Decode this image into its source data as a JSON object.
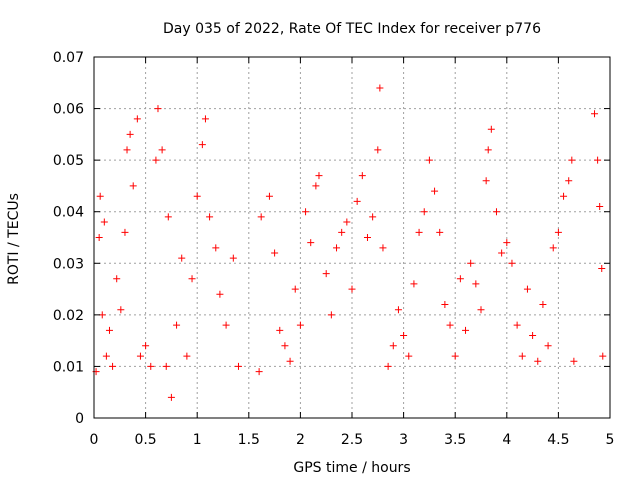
{
  "chart_data": {
    "type": "scatter",
    "title": "Day 035 of 2022, Rate Of TEC Index for receiver p776",
    "xlabel": "GPS time / hours",
    "ylabel": "ROTI / TECUs",
    "xlim": [
      0,
      5
    ],
    "ylim": [
      0,
      0.07
    ],
    "x_ticks": [
      0,
      0.5,
      1,
      1.5,
      2,
      2.5,
      3,
      3.5,
      4,
      4.5,
      5
    ],
    "x_tick_labels": [
      "0",
      "0.5",
      "1",
      "1.5",
      "2",
      "2.5",
      "3",
      "3.5",
      "4",
      "4.5",
      "5"
    ],
    "y_ticks": [
      0,
      0.01,
      0.02,
      0.03,
      0.04,
      0.05,
      0.06,
      0.07
    ],
    "y_tick_labels": [
      "0",
      "0.01",
      "0.02",
      "0.03",
      "0.04",
      "0.05",
      "0.06",
      "0.07"
    ],
    "grid": true,
    "marker": "+",
    "marker_color": "#ff0000",
    "series": [
      {
        "name": "ROTI",
        "points": [
          [
            0.02,
            0.009
          ],
          [
            0.05,
            0.035
          ],
          [
            0.06,
            0.043
          ],
          [
            0.08,
            0.02
          ],
          [
            0.1,
            0.038
          ],
          [
            0.12,
            0.012
          ],
          [
            0.15,
            0.017
          ],
          [
            0.18,
            0.01
          ],
          [
            0.22,
            0.027
          ],
          [
            0.26,
            0.021
          ],
          [
            0.3,
            0.036
          ],
          [
            0.32,
            0.052
          ],
          [
            0.35,
            0.055
          ],
          [
            0.38,
            0.045
          ],
          [
            0.42,
            0.058
          ],
          [
            0.45,
            0.012
          ],
          [
            0.5,
            0.014
          ],
          [
            0.55,
            0.01
          ],
          [
            0.6,
            0.05
          ],
          [
            0.62,
            0.06
          ],
          [
            0.66,
            0.052
          ],
          [
            0.7,
            0.01
          ],
          [
            0.72,
            0.039
          ],
          [
            0.75,
            0.004
          ],
          [
            0.8,
            0.018
          ],
          [
            0.85,
            0.031
          ],
          [
            0.9,
            0.012
          ],
          [
            0.95,
            0.027
          ],
          [
            1.0,
            0.043
          ],
          [
            1.05,
            0.053
          ],
          [
            1.08,
            0.058
          ],
          [
            1.12,
            0.039
          ],
          [
            1.18,
            0.033
          ],
          [
            1.22,
            0.024
          ],
          [
            1.28,
            0.018
          ],
          [
            1.35,
            0.031
          ],
          [
            1.4,
            0.01
          ],
          [
            1.6,
            0.009
          ],
          [
            1.62,
            0.039
          ],
          [
            1.7,
            0.043
          ],
          [
            1.75,
            0.032
          ],
          [
            1.8,
            0.017
          ],
          [
            1.85,
            0.014
          ],
          [
            1.9,
            0.011
          ],
          [
            1.95,
            0.025
          ],
          [
            2.0,
            0.018
          ],
          [
            2.05,
            0.04
          ],
          [
            2.1,
            0.034
          ],
          [
            2.15,
            0.045
          ],
          [
            2.18,
            0.047
          ],
          [
            2.25,
            0.028
          ],
          [
            2.3,
            0.02
          ],
          [
            2.35,
            0.033
          ],
          [
            2.4,
            0.036
          ],
          [
            2.45,
            0.038
          ],
          [
            2.5,
            0.025
          ],
          [
            2.55,
            0.042
          ],
          [
            2.6,
            0.047
          ],
          [
            2.65,
            0.035
          ],
          [
            2.7,
            0.039
          ],
          [
            2.75,
            0.052
          ],
          [
            2.77,
            0.064
          ],
          [
            2.8,
            0.033
          ],
          [
            2.85,
            0.01
          ],
          [
            2.9,
            0.014
          ],
          [
            2.95,
            0.021
          ],
          [
            3.0,
            0.016
          ],
          [
            3.05,
            0.012
          ],
          [
            3.1,
            0.026
          ],
          [
            3.15,
            0.036
          ],
          [
            3.2,
            0.04
          ],
          [
            3.25,
            0.05
          ],
          [
            3.3,
            0.044
          ],
          [
            3.35,
            0.036
          ],
          [
            3.4,
            0.022
          ],
          [
            3.45,
            0.018
          ],
          [
            3.5,
            0.012
          ],
          [
            3.55,
            0.027
          ],
          [
            3.6,
            0.017
          ],
          [
            3.65,
            0.03
          ],
          [
            3.7,
            0.026
          ],
          [
            3.75,
            0.021
          ],
          [
            3.8,
            0.046
          ],
          [
            3.82,
            0.052
          ],
          [
            3.85,
            0.056
          ],
          [
            3.9,
            0.04
          ],
          [
            3.95,
            0.032
          ],
          [
            4.0,
            0.034
          ],
          [
            4.05,
            0.03
          ],
          [
            4.1,
            0.018
          ],
          [
            4.15,
            0.012
          ],
          [
            4.2,
            0.025
          ],
          [
            4.25,
            0.016
          ],
          [
            4.3,
            0.011
          ],
          [
            4.35,
            0.022
          ],
          [
            4.4,
            0.014
          ],
          [
            4.45,
            0.033
          ],
          [
            4.5,
            0.036
          ],
          [
            4.55,
            0.043
          ],
          [
            4.6,
            0.046
          ],
          [
            4.63,
            0.05
          ],
          [
            4.65,
            0.011
          ],
          [
            4.85,
            0.059
          ],
          [
            4.88,
            0.05
          ],
          [
            4.9,
            0.041
          ],
          [
            4.92,
            0.029
          ],
          [
            4.93,
            0.012
          ]
        ]
      }
    ]
  }
}
